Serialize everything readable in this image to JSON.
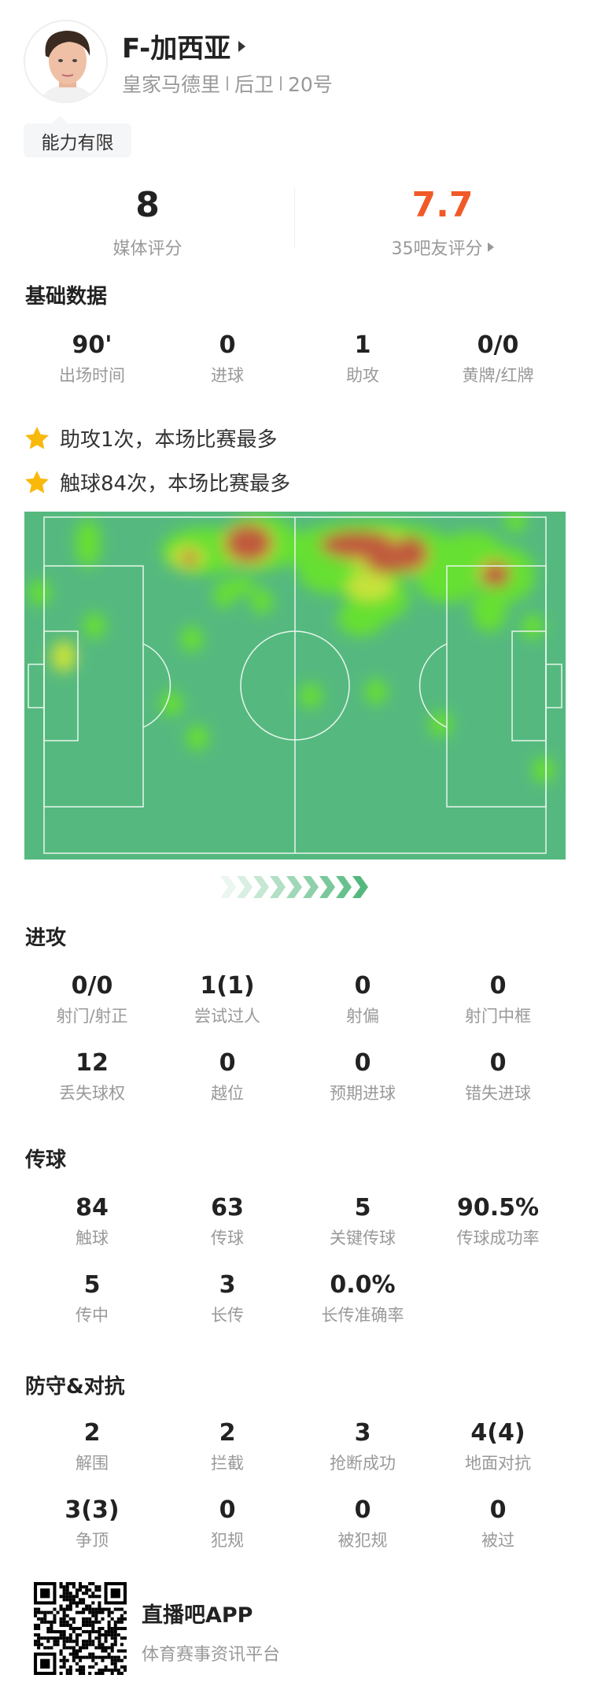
{
  "player": {
    "name": "F-加西亚",
    "team": "皇家马德里",
    "position": "后卫",
    "number": "20号",
    "tag": "能力有限"
  },
  "ratings": {
    "media": {
      "value": "8",
      "label": "媒体评分"
    },
    "fans": {
      "value": "7.7",
      "label": "35吧友评分"
    }
  },
  "colors": {
    "accent": "#f05a28",
    "pitch": "#55b97f",
    "heat_low": "#66e033",
    "heat_mid": "#c8e23a",
    "heat_high": "#c05a3e",
    "star": "#f9b90c"
  },
  "basic": {
    "title": "基础数据",
    "items": [
      {
        "v": "90'",
        "l": "出场时间"
      },
      {
        "v": "0",
        "l": "进球"
      },
      {
        "v": "1",
        "l": "助攻"
      },
      {
        "v": "0/0",
        "l": "黄牌/红牌"
      }
    ]
  },
  "highlights": [
    {
      "icon": "star-icon",
      "text": "助攻1次，本场比赛最多"
    },
    {
      "icon": "star-icon",
      "text": "触球84次，本场比赛最多"
    }
  ],
  "attack": {
    "title": "进攻",
    "items": [
      {
        "v": "0/0",
        "l": "射门/射正"
      },
      {
        "v": "1(1)",
        "l": "尝试过人"
      },
      {
        "v": "0",
        "l": "射偏"
      },
      {
        "v": "0",
        "l": "射门中框"
      },
      {
        "v": "12",
        "l": "丢失球权"
      },
      {
        "v": "0",
        "l": "越位"
      },
      {
        "v": "0",
        "l": "预期进球"
      },
      {
        "v": "0",
        "l": "错失进球"
      }
    ]
  },
  "passing": {
    "title": "传球",
    "items": [
      {
        "v": "84",
        "l": "触球"
      },
      {
        "v": "63",
        "l": "传球"
      },
      {
        "v": "5",
        "l": "关键传球"
      },
      {
        "v": "90.5%",
        "l": "传球成功率"
      },
      {
        "v": "5",
        "l": "传中"
      },
      {
        "v": "3",
        "l": "长传"
      },
      {
        "v": "0.0%",
        "l": "长传准确率"
      }
    ]
  },
  "defense": {
    "title": "防守&对抗",
    "items": [
      {
        "v": "2",
        "l": "解围"
      },
      {
        "v": "2",
        "l": "拦截"
      },
      {
        "v": "3",
        "l": "抢断成功"
      },
      {
        "v": "4(4)",
        "l": "地面对抗"
      },
      {
        "v": "3(3)",
        "l": "争顶"
      },
      {
        "v": "0",
        "l": "犯规"
      },
      {
        "v": "0",
        "l": "被犯规"
      },
      {
        "v": "0",
        "l": "被过"
      }
    ]
  },
  "footer": {
    "app_name": "直播吧APP",
    "slogan": "体育赛事资讯平台"
  }
}
